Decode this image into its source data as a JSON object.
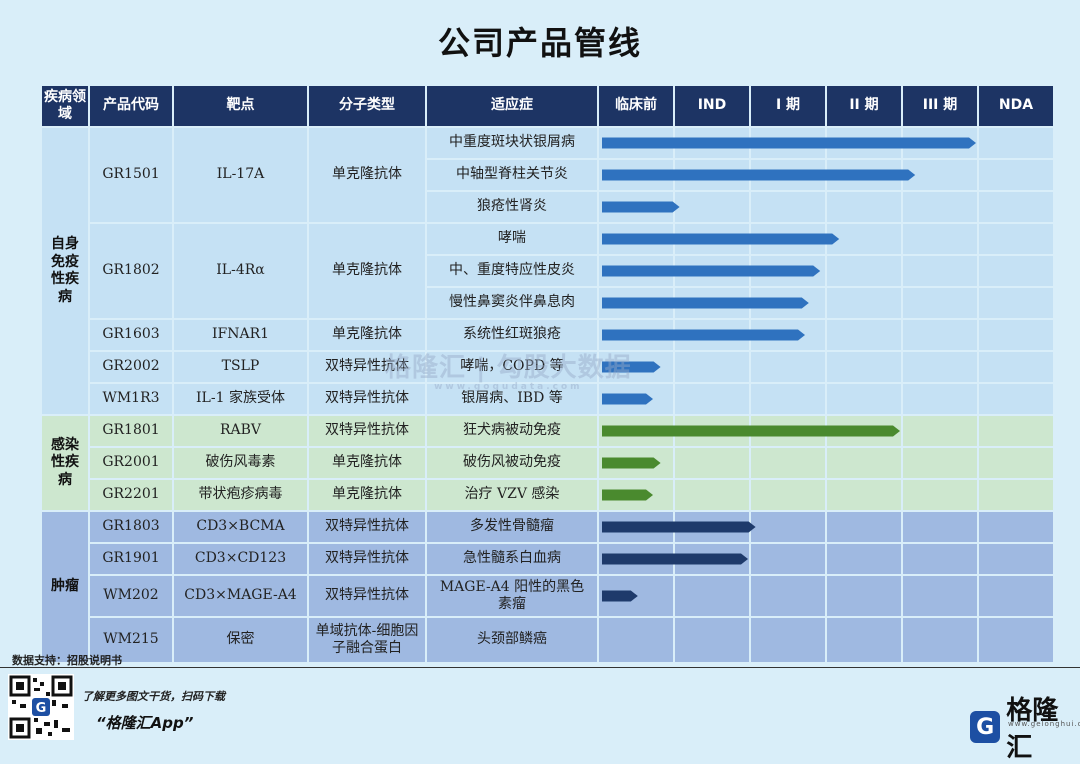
{
  "title": "公司产品管线",
  "headers": [
    "疾病领域",
    "产品代码",
    "靶点",
    "分子类型",
    "适应症",
    "临床前",
    "IND",
    "I 期",
    "II 期",
    "III 期",
    "NDA"
  ],
  "areas": [
    {
      "name": "自身免疫性疾病",
      "label_lines": [
        "自身",
        "免疫",
        "性疾",
        "病"
      ]
    },
    {
      "name": "感染性疾病",
      "label_lines": [
        "感染",
        "性疾",
        "病"
      ]
    },
    {
      "name": "肿瘤",
      "label_lines": [
        "肿瘤"
      ]
    }
  ],
  "products": [
    {
      "code": "GR1501",
      "target": "IL-17A",
      "type": "单克隆抗体",
      "area": 0
    },
    {
      "code": "GR1802",
      "target": "IL-4Rα",
      "type": "单克隆抗体",
      "area": 0
    },
    {
      "code": "GR1603",
      "target": "IFNAR1",
      "type": "单克隆抗体",
      "area": 0
    },
    {
      "code": "GR2002",
      "target": "TSLP",
      "type": "双特异性抗体",
      "area": 0
    },
    {
      "code": "WM1R3",
      "target": "IL-1 家族受体",
      "type": "双特异性抗体",
      "area": 0
    },
    {
      "code": "GR1801",
      "target": "RABV",
      "type": "双特异性抗体",
      "area": 1
    },
    {
      "code": "GR2001",
      "target": "破伤风毒素",
      "type": "单克隆抗体",
      "area": 1
    },
    {
      "code": "GR2201",
      "target": "带状疱疹病毒",
      "type": "单克隆抗体",
      "area": 1
    },
    {
      "code": "GR1803",
      "target": "CD3×BCMA",
      "type": "双特异性抗体",
      "area": 2
    },
    {
      "code": "GR1901",
      "target": "CD3×CD123",
      "type": "双特异性抗体",
      "area": 2
    },
    {
      "code": "WM202",
      "target": "CD3×MAGE-A4",
      "type": "双特异性抗体",
      "area": 2
    },
    {
      "code": "WM215",
      "target": "保密",
      "type": "单域抗体-细胞因子融合蛋白",
      "area": 2
    }
  ],
  "indications": [
    "中重度斑块状银屑病",
    "中轴型脊柱关节炎",
    "狼疮性肾炎",
    "哮喘",
    "中、重度特应性皮炎",
    "慢性鼻窦炎伴鼻息肉",
    "系统性红斑狼疮",
    "哮喘，COPD 等",
    "银屑病、IBD 等",
    "狂犬病被动免疫",
    "破伤风被动免疫",
    "治疗 VZV 感染",
    "多发性骨髓瘤",
    "急性髓系白血病",
    "MAGE-A4 阳性的黑色素瘤",
    "头颈部鳞癌"
  ],
  "colors": {
    "header": "#1d3464",
    "autoimmune_bg": "#c5e1f4",
    "infectious_bg": "#cde7cf",
    "oncology_bg": "#9fb9e1",
    "autoimmune_bar": "#2f72bf",
    "infectious_bar": "#4a8a2e",
    "oncology_bar": "#1e3a6b"
  },
  "chart_data": {
    "type": "bar",
    "orientation": "horizontal",
    "stages": [
      "临床前",
      "IND",
      "I 期",
      "II 期",
      "III 期",
      "NDA"
    ],
    "bars": [
      {
        "indication": "中重度斑块状银屑病",
        "progress_stages": 5.0,
        "area": 0
      },
      {
        "indication": "中轴型脊柱关节炎",
        "progress_stages": 4.2,
        "area": 0
      },
      {
        "indication": "狼疮性肾炎",
        "progress_stages": 1.1,
        "area": 0
      },
      {
        "indication": "哮喘",
        "progress_stages": 3.2,
        "area": 0
      },
      {
        "indication": "中、重度特应性皮炎",
        "progress_stages": 2.95,
        "area": 0
      },
      {
        "indication": "慢性鼻窦炎伴鼻息肉",
        "progress_stages": 2.8,
        "area": 0
      },
      {
        "indication": "系统性红斑狼疮",
        "progress_stages": 2.75,
        "area": 0
      },
      {
        "indication": "哮喘，COPD 等",
        "progress_stages": 0.85,
        "area": 0
      },
      {
        "indication": "银屑病、IBD 等",
        "progress_stages": 0.75,
        "area": 0
      },
      {
        "indication": "狂犬病被动免疫",
        "progress_stages": 4.0,
        "area": 1
      },
      {
        "indication": "破伤风被动免疫",
        "progress_stages": 0.85,
        "area": 1
      },
      {
        "indication": "治疗 VZV 感染",
        "progress_stages": 0.75,
        "area": 1
      },
      {
        "indication": "多发性骨髓瘤",
        "progress_stages": 2.1,
        "area": 2
      },
      {
        "indication": "急性髓系白血病",
        "progress_stages": 2.0,
        "area": 2
      },
      {
        "indication": "MAGE-A4 阳性的黑色素瘤",
        "progress_stages": 0.55,
        "area": 2
      },
      {
        "indication": "头颈部鳞癌",
        "progress_stages": 0.55,
        "area": 2
      }
    ]
  },
  "watermark": {
    "main": "格隆汇 | 勾股大数据",
    "sub": "www.gogudata.com"
  },
  "footer": {
    "source": "数据支持：招股说明书",
    "promo_line1": "了解更多图文干货，扫码下载",
    "promo_line2": "“格隆汇App”",
    "logo_text": "格隆汇",
    "logo_mark": "G",
    "logo_url": "www.gelonghui.com"
  }
}
